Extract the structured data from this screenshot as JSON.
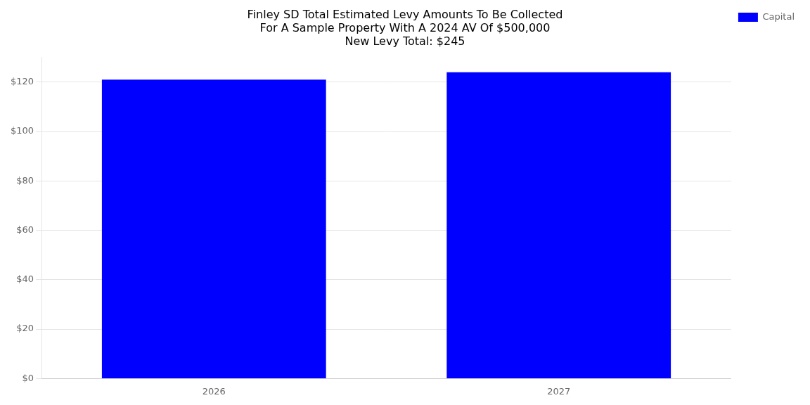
{
  "chart_data": {
    "type": "bar",
    "title": "Finley SD Total Estimated Levy Amounts To Be Collected\nFor A Sample Property With A 2024 AV Of $500,000\nNew Levy Total: $245",
    "categories": [
      "2026",
      "2027"
    ],
    "series": [
      {
        "name": "Capital",
        "color": "#0000FF",
        "values": [
          121,
          124
        ]
      }
    ],
    "ylim": [
      0,
      130
    ],
    "yticks": [
      {
        "value": 0,
        "label": "$0"
      },
      {
        "value": 20,
        "label": "$20"
      },
      {
        "value": 40,
        "label": "$40"
      },
      {
        "value": 60,
        "label": "$60"
      },
      {
        "value": 80,
        "label": "$80"
      },
      {
        "value": 100,
        "label": "$100"
      },
      {
        "value": 120,
        "label": "$120"
      }
    ],
    "grid": true,
    "legend": "upper right"
  }
}
